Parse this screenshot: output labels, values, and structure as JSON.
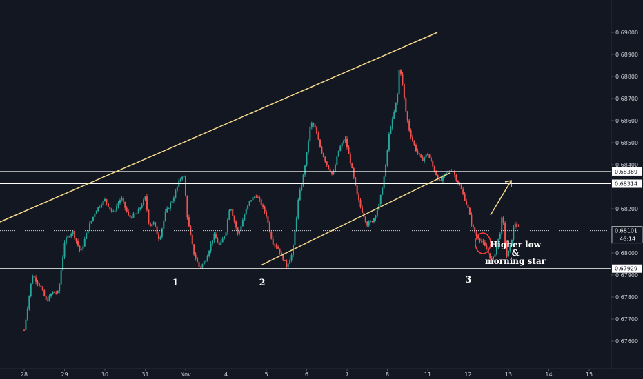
{
  "chart_data": {
    "type": "candlestick",
    "colors": {
      "background": "#131722",
      "up": "#26a69a",
      "down": "#ef5350",
      "trendline": "#f5d88a",
      "level": "#ffffff",
      "circle": "#ff3b3b",
      "axis_text": "#c9cbd1"
    },
    "y_ticks": [
      "0.67600",
      "0.67700",
      "0.67800",
      "0.67900",
      "0.68000",
      "0.68200",
      "0.68400",
      "0.68500",
      "0.68600",
      "0.68700",
      "0.68800",
      "0.68900",
      "0.69000"
    ],
    "x_ticks": [
      "28",
      "29",
      "30",
      "31",
      "Nov",
      "4",
      "5",
      "6",
      "7",
      "8",
      "11",
      "12",
      "13",
      "14",
      "15"
    ],
    "levels": [
      {
        "price": 0.68369,
        "label": "0.68369"
      },
      {
        "price": 0.68314,
        "label": "0.68314"
      },
      {
        "price": 0.67929,
        "label": "0.67929"
      }
    ],
    "current_price": {
      "price": 0.68101,
      "label": "0.68101",
      "countdown": "46:14"
    },
    "waves": [
      "1",
      "2",
      "3"
    ],
    "annotation": [
      "Higher low",
      "&",
      "morning star"
    ],
    "series_path": [
      [
        0.0,
        0.6765
      ],
      [
        0.2,
        0.679
      ],
      [
        0.4,
        0.6785
      ],
      [
        0.55,
        0.6778
      ],
      [
        0.7,
        0.6782
      ],
      [
        0.85,
        0.6782
      ],
      [
        1.0,
        0.6805
      ],
      [
        1.2,
        0.681
      ],
      [
        1.4,
        0.68
      ],
      [
        1.6,
        0.6812
      ],
      [
        1.8,
        0.682
      ],
      [
        2.0,
        0.6824
      ],
      [
        2.2,
        0.6818
      ],
      [
        2.4,
        0.6825
      ],
      [
        2.6,
        0.6816
      ],
      [
        2.8,
        0.6818
      ],
      [
        3.0,
        0.6825
      ],
      [
        3.1,
        0.6812
      ],
      [
        3.2,
        0.6814
      ],
      [
        3.35,
        0.6806
      ],
      [
        3.5,
        0.6818
      ],
      [
        3.7,
        0.6825
      ],
      [
        3.85,
        0.6833
      ],
      [
        3.95,
        0.6836
      ],
      [
        4.05,
        0.6815
      ],
      [
        4.2,
        0.68
      ],
      [
        4.35,
        0.6793
      ],
      [
        4.5,
        0.6797
      ],
      [
        4.7,
        0.6808
      ],
      [
        4.85,
        0.6803
      ],
      [
        5.0,
        0.681
      ],
      [
        5.1,
        0.6822
      ],
      [
        5.2,
        0.6815
      ],
      [
        5.3,
        0.6808
      ],
      [
        5.45,
        0.6817
      ],
      [
        5.6,
        0.6824
      ],
      [
        5.75,
        0.6826
      ],
      [
        5.85,
        0.6823
      ],
      [
        6.0,
        0.6817
      ],
      [
        6.15,
        0.6805
      ],
      [
        6.3,
        0.6802
      ],
      [
        6.5,
        0.6794
      ],
      [
        6.65,
        0.68
      ],
      [
        6.8,
        0.6825
      ],
      [
        6.9,
        0.6833
      ],
      [
        7.0,
        0.6845
      ],
      [
        7.1,
        0.6859
      ],
      [
        7.2,
        0.6857
      ],
      [
        7.35,
        0.6847
      ],
      [
        7.5,
        0.684
      ],
      [
        7.65,
        0.6835
      ],
      [
        7.8,
        0.6847
      ],
      [
        7.95,
        0.6852
      ],
      [
        8.1,
        0.684
      ],
      [
        8.25,
        0.6826
      ],
      [
        8.35,
        0.682
      ],
      [
        8.5,
        0.6813
      ],
      [
        8.65,
        0.6815
      ],
      [
        8.8,
        0.6822
      ],
      [
        8.95,
        0.6838
      ],
      [
        9.05,
        0.6855
      ],
      [
        9.15,
        0.6862
      ],
      [
        9.25,
        0.6872
      ],
      [
        9.3,
        0.6885
      ],
      [
        9.35,
        0.688
      ],
      [
        9.45,
        0.6865
      ],
      [
        9.55,
        0.6855
      ],
      [
        9.7,
        0.6847
      ],
      [
        9.85,
        0.6842
      ],
      [
        10.0,
        0.6845
      ],
      [
        10.15,
        0.6838
      ],
      [
        10.3,
        0.6832
      ],
      [
        10.45,
        0.6836
      ],
      [
        10.6,
        0.6838
      ],
      [
        10.75,
        0.6832
      ],
      [
        10.85,
        0.6828
      ],
      [
        11.0,
        0.682
      ],
      [
        11.1,
        0.6812
      ],
      [
        11.2,
        0.6808
      ],
      [
        11.35,
        0.6805
      ],
      [
        11.5,
        0.68
      ],
      [
        11.6,
        0.6796
      ],
      [
        11.7,
        0.6802
      ],
      [
        11.8,
        0.681
      ],
      [
        11.85,
        0.6818
      ],
      [
        11.95,
        0.6798
      ],
      [
        12.05,
        0.6803
      ],
      [
        12.15,
        0.6814
      ],
      [
        12.25,
        0.6811
      ]
    ]
  }
}
